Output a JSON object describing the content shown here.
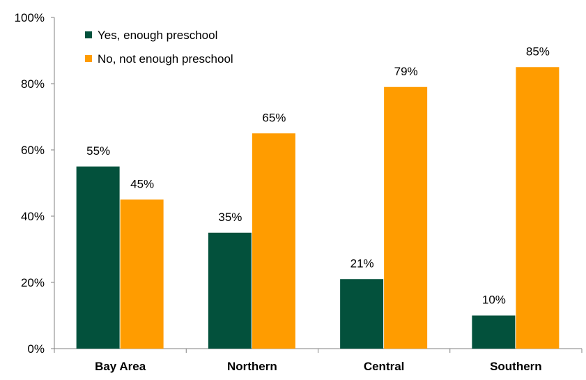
{
  "chart_data": {
    "type": "bar",
    "categories": [
      "Bay Area",
      "Northern",
      "Central",
      "Southern"
    ],
    "series": [
      {
        "name": "Yes, enough preschool",
        "values": [
          55,
          35,
          21,
          10
        ],
        "color": "#03513C"
      },
      {
        "name": "No, not enough preschool",
        "values": [
          45,
          65,
          79,
          85
        ],
        "color": "#FF9C00"
      }
    ],
    "value_suffix": "%",
    "yticks": [
      "0%",
      "20%",
      "40%",
      "60%",
      "80%",
      "100%"
    ],
    "ylim": [
      0,
      100
    ],
    "grid": false,
    "legend_position": "top-left"
  }
}
